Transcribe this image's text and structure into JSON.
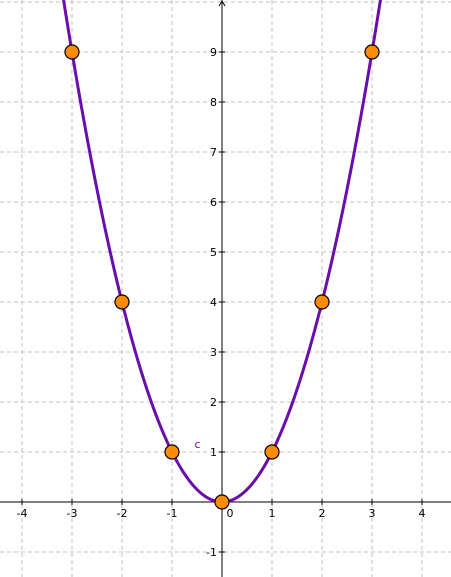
{
  "chart_data": {
    "type": "scatter",
    "title": "",
    "xlabel": "",
    "ylabel": "",
    "xlim": [
      -4.44,
      4.58
    ],
    "ylim": [
      -1.5,
      10.04
    ],
    "x_ticks": [
      -4,
      -3,
      -2,
      -1,
      0,
      1,
      2,
      3,
      4
    ],
    "y_ticks": [
      -1,
      1,
      2,
      3,
      4,
      5,
      6,
      7,
      8,
      9
    ],
    "grid": true,
    "series": [
      {
        "kind": "curve",
        "function": "y = x^2",
        "color": "#6a0dad",
        "x": [
          -3.2,
          -3,
          -2.5,
          -2,
          -1.5,
          -1,
          -0.5,
          0,
          0.5,
          1,
          1.5,
          2,
          2.5,
          3,
          3.2
        ],
        "y": [
          10.24,
          9,
          6.25,
          4,
          2.25,
          1,
          0.25,
          0,
          0.25,
          1,
          2.25,
          4,
          6.25,
          9,
          10.24
        ]
      },
      {
        "kind": "points",
        "color": "#ff8c00",
        "x": [
          -3,
          -2,
          -1,
          0,
          1,
          2,
          3
        ],
        "y": [
          9,
          4,
          1,
          0,
          1,
          4,
          9
        ]
      }
    ],
    "annotations": [
      {
        "text": "c",
        "x": -0.55,
        "y": 1.08,
        "color": "#8000c0"
      }
    ]
  }
}
